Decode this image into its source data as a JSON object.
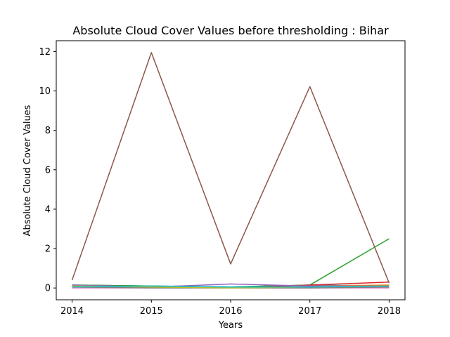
{
  "chart_data": {
    "type": "line",
    "title": "Absolute Cloud Cover Values before thresholding : Bihar",
    "xlabel": "Years",
    "ylabel": "Absolute Cloud Cover Values",
    "x": [
      2014,
      2015,
      2016,
      2017,
      2018
    ],
    "x_ticks": [
      "2014",
      "2015",
      "2016",
      "2017",
      "2018"
    ],
    "y_ticks": [
      "0",
      "2",
      "4",
      "6",
      "8",
      "10",
      "12"
    ],
    "xlim": [
      2013.8,
      2018.2
    ],
    "ylim": [
      -0.6,
      12.55
    ],
    "grid": false,
    "legend": "none",
    "series": [
      {
        "color": "#1f77b4",
        "values": [
          0.15,
          0.1,
          0.05,
          0.15,
          0.1
        ]
      },
      {
        "color": "#ff7f0e",
        "values": [
          0.1,
          0.05,
          0.05,
          0.1,
          0.15
        ]
      },
      {
        "color": "#2ca02c",
        "values": [
          0.15,
          0.1,
          0.05,
          0.15,
          2.5
        ]
      },
      {
        "color": "#d62728",
        "values": [
          0.1,
          0.05,
          0.0,
          0.15,
          0.3
        ]
      },
      {
        "color": "#9467bd",
        "values": [
          0.15,
          0.05,
          0.2,
          0.1,
          0.1
        ]
      },
      {
        "color": "#8c564b",
        "values": [
          0.4,
          11.95,
          1.22,
          10.22,
          0.25
        ]
      },
      {
        "color": "#e377c2",
        "values": [
          0.0,
          0.0,
          0.0,
          0.0,
          0.0
        ]
      },
      {
        "color": "#7f7f7f",
        "values": [
          0.05,
          0.0,
          0.0,
          0.0,
          0.05
        ]
      },
      {
        "color": "#bcbd22",
        "values": [
          0.1,
          0.05,
          0.0,
          0.05,
          0.1
        ]
      },
      {
        "color": "#17becf",
        "values": [
          0.05,
          0.1,
          0.05,
          0.05,
          0.1
        ]
      }
    ]
  }
}
